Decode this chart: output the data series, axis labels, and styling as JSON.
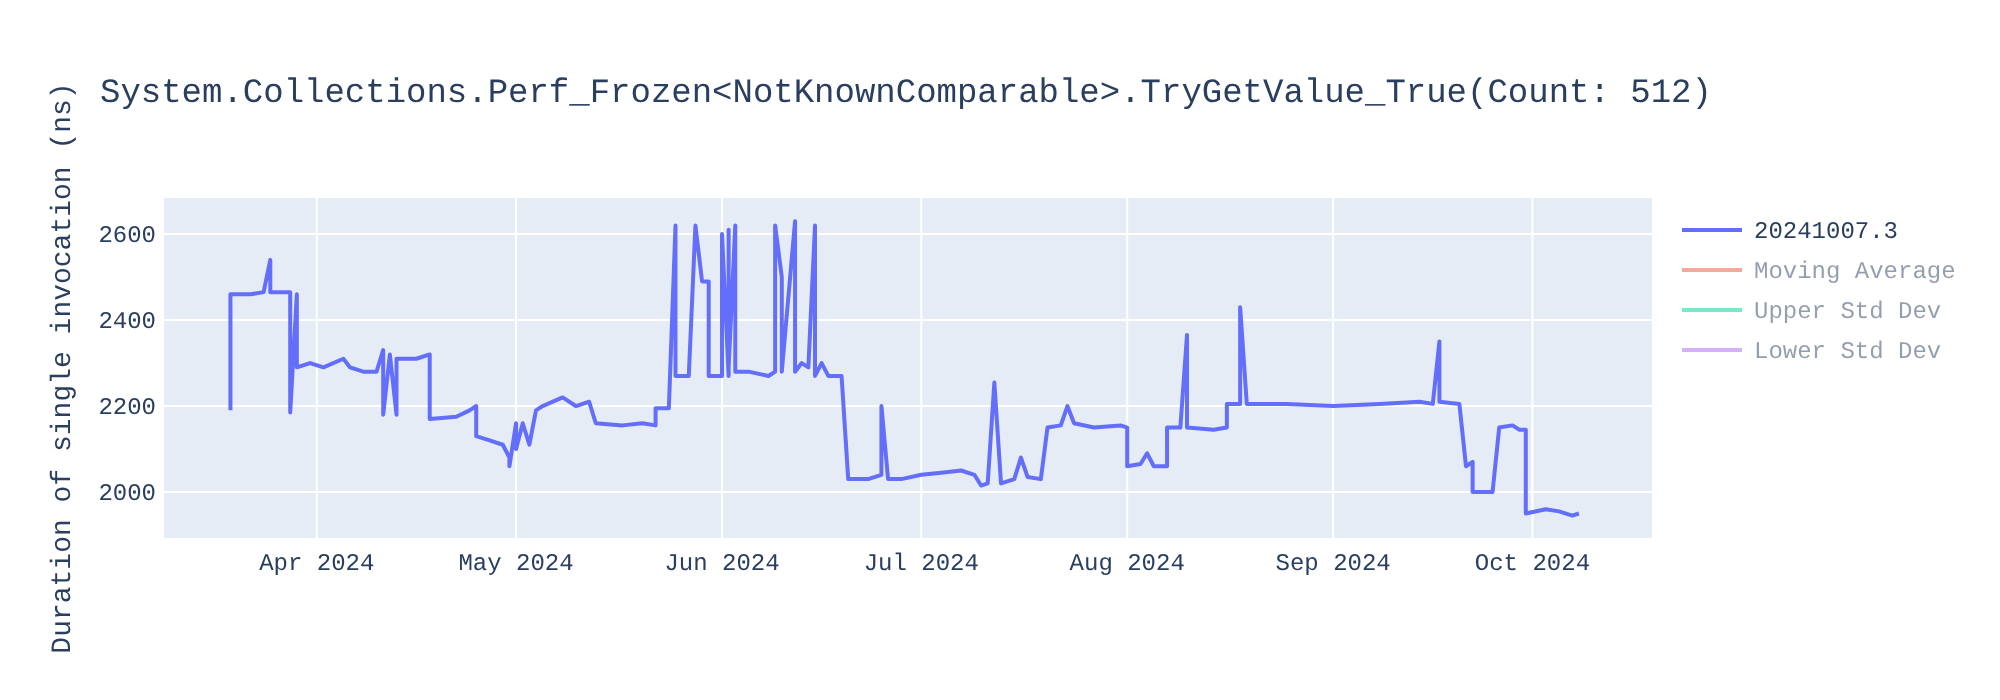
{
  "chart_data": {
    "type": "line",
    "title": "System.Collections.Perf_Frozen<NotKnownComparable>.TryGetValue_True(Count: 512)",
    "ylabel": "Duration of single invocation (ns)",
    "xlim": [
      "2024-03-09",
      "2024-10-19"
    ],
    "xticks": [
      {
        "value": "2024-04-01",
        "label": "Apr 2024"
      },
      {
        "value": "2024-05-01",
        "label": "May 2024"
      },
      {
        "value": "2024-06-01",
        "label": "Jun 2024"
      },
      {
        "value": "2024-07-01",
        "label": "Jul 2024"
      },
      {
        "value": "2024-08-01",
        "label": "Aug 2024"
      },
      {
        "value": "2024-09-01",
        "label": "Sep 2024"
      },
      {
        "value": "2024-10-01",
        "label": "Oct 2024"
      }
    ],
    "ylim": [
      1893,
      2684
    ],
    "yticks": [
      2000,
      2200,
      2400,
      2600
    ],
    "grid": true,
    "legend": "right",
    "series": [
      {
        "name": "20241007.3",
        "color": "#636efa",
        "x": [
          "2024-03-19",
          "2024-03-19",
          "2024-03-22",
          "2024-03-24",
          "2024-03-25",
          "2024-03-25",
          "2024-03-28",
          "2024-03-28",
          "2024-03-29",
          "2024-03-29",
          "2024-03-31",
          "2024-04-02",
          "2024-04-05",
          "2024-04-06",
          "2024-04-08",
          "2024-04-10",
          "2024-04-11",
          "2024-04-11",
          "2024-04-12",
          "2024-04-13",
          "2024-04-13",
          "2024-04-16",
          "2024-04-18",
          "2024-04-18",
          "2024-04-22",
          "2024-04-24",
          "2024-04-25",
          "2024-04-25",
          "2024-04-27",
          "2024-04-29",
          "2024-04-30",
          "2024-04-30",
          "2024-05-01",
          "2024-05-01",
          "2024-05-02",
          "2024-05-03",
          "2024-05-04",
          "2024-05-05",
          "2024-05-08",
          "2024-05-10",
          "2024-05-12",
          "2024-05-13",
          "2024-05-17",
          "2024-05-20",
          "2024-05-22",
          "2024-05-22",
          "2024-05-24",
          "2024-05-25",
          "2024-05-25",
          "2024-05-27",
          "2024-05-28",
          "2024-05-29",
          "2024-05-30",
          "2024-05-30",
          "2024-06-01",
          "2024-06-01",
          "2024-06-02",
          "2024-06-02",
          "2024-06-02",
          "2024-06-03",
          "2024-06-03",
          "2024-06-05",
          "2024-06-08",
          "2024-06-09",
          "2024-06-09",
          "2024-06-10",
          "2024-06-10",
          "2024-06-12",
          "2024-06-12",
          "2024-06-13",
          "2024-06-14",
          "2024-06-15",
          "2024-06-15",
          "2024-06-16",
          "2024-06-17",
          "2024-06-19",
          "2024-06-20",
          "2024-06-23",
          "2024-06-25",
          "2024-06-25",
          "2024-06-26",
          "2024-06-28",
          "2024-07-01",
          "2024-07-04",
          "2024-07-07",
          "2024-07-09",
          "2024-07-10",
          "2024-07-11",
          "2024-07-12",
          "2024-07-13",
          "2024-07-15",
          "2024-07-16",
          "2024-07-17",
          "2024-07-19",
          "2024-07-20",
          "2024-07-22",
          "2024-07-23",
          "2024-07-24",
          "2024-07-27",
          "2024-07-31",
          "2024-08-01",
          "2024-08-01",
          "2024-08-03",
          "2024-08-04",
          "2024-08-05",
          "2024-08-07",
          "2024-08-07",
          "2024-08-09",
          "2024-08-10",
          "2024-08-10",
          "2024-08-14",
          "2024-08-16",
          "2024-08-16",
          "2024-08-18",
          "2024-08-18",
          "2024-08-19",
          "2024-08-25",
          "2024-09-01",
          "2024-09-08",
          "2024-09-14",
          "2024-09-16",
          "2024-09-17",
          "2024-09-17",
          "2024-09-20",
          "2024-09-21",
          "2024-09-22",
          "2024-09-22",
          "2024-09-25",
          "2024-09-26",
          "2024-09-28",
          "2024-09-29",
          "2024-09-30",
          "2024-09-30",
          "2024-10-03",
          "2024-10-05",
          "2024-10-07",
          "2024-10-08"
        ],
        "values": [
          2190,
          2460,
          2460,
          2465,
          2540,
          2465,
          2465,
          2185,
          2460,
          2290,
          2300,
          2290,
          2310,
          2290,
          2280,
          2280,
          2330,
          2180,
          2320,
          2180,
          2310,
          2310,
          2320,
          2170,
          2175,
          2190,
          2200,
          2130,
          2120,
          2110,
          2080,
          2060,
          2160,
          2100,
          2160,
          2110,
          2190,
          2200,
          2220,
          2200,
          2210,
          2160,
          2155,
          2160,
          2155,
          2195,
          2195,
          2620,
          2270,
          2270,
          2620,
          2490,
          2490,
          2270,
          2270,
          2600,
          2270,
          2610,
          2290,
          2620,
          2280,
          2280,
          2270,
          2280,
          2620,
          2500,
          2280,
          2630,
          2280,
          2300,
          2290,
          2620,
          2270,
          2300,
          2270,
          2270,
          2030,
          2030,
          2040,
          2200,
          2030,
          2030,
          2040,
          2045,
          2050,
          2040,
          2015,
          2020,
          2255,
          2020,
          2030,
          2080,
          2035,
          2030,
          2150,
          2155,
          2200,
          2160,
          2150,
          2155,
          2150,
          2060,
          2065,
          2090,
          2060,
          2060,
          2150,
          2150,
          2365,
          2150,
          2145,
          2150,
          2205,
          2205,
          2430,
          2205,
          2205,
          2200,
          2205,
          2210,
          2205,
          2350,
          2210,
          2205,
          2060,
          2070,
          2000,
          2000,
          2150,
          2155,
          2145,
          2145,
          1950,
          1960,
          1955,
          1945,
          1950
        ]
      },
      {
        "name": "Moving Average",
        "color": "#ef553b"
      },
      {
        "name": "Upper Std Dev",
        "color": "#00cc96"
      },
      {
        "name": "Lower Std Dev",
        "color": "#ab63fa"
      }
    ]
  }
}
